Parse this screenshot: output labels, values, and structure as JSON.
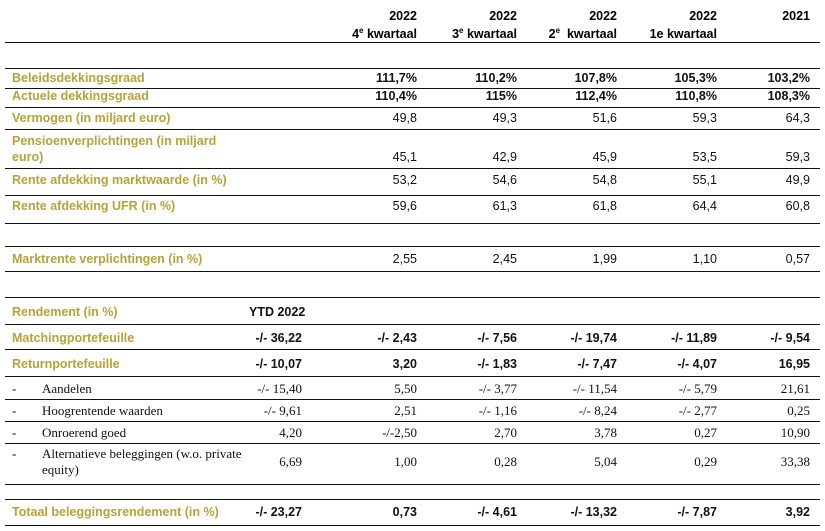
{
  "header": {
    "cols": [
      {
        "year": "2022",
        "q_num": "4",
        "q_sup": "e",
        "q_text": " kwartaal"
      },
      {
        "year": "2022",
        "q_num": "3",
        "q_sup": "e",
        "q_text": " kwartaal"
      },
      {
        "year": "2022",
        "q_num": "2",
        "q_sup": "e",
        "q_text": "  kwartaal"
      },
      {
        "year": "2022",
        "q_num": "1e kwartaal",
        "q_sup": "",
        "q_text": ""
      },
      {
        "year": "2021",
        "q_num": "",
        "q_sup": "",
        "q_text": ""
      }
    ]
  },
  "rows1": [
    {
      "label": "Beleidsdekkingsgraad",
      "values": [
        "111,7%",
        "110,2%",
        "107,8%",
        "105,3%",
        "103,2%"
      ]
    },
    {
      "label": "Actuele dekkingsgraad",
      "values": [
        "110,4%",
        "115%",
        "112,4%",
        "110,8%",
        "108,3%"
      ]
    },
    {
      "label": "Vermogen (in miljard euro)",
      "values": [
        "49,8",
        "49,3",
        "51,6",
        "59,3",
        "64,3"
      ]
    },
    {
      "label": "Pensioenverplichtingen (in miljard euro)",
      "values": [
        "45,1",
        "42,9",
        "45,9",
        "53,5",
        "59,3"
      ]
    },
    {
      "label": "Rente afdekking marktwaarde (in %)",
      "values": [
        "53,2",
        "54,6",
        "54,8",
        "55,1",
        "49,9"
      ]
    },
    {
      "label": "Rente afdekking UFR (in %)",
      "values": [
        "59,6",
        "61,3",
        "61,8",
        "64,4",
        "60,8"
      ]
    }
  ],
  "marktrente": {
    "label": "Marktrente verplichtingen (in %)",
    "values": [
      "2,55",
      "2,45",
      "1,99",
      "1,10",
      "0,57"
    ]
  },
  "rendement": {
    "label": "Rendement (in %)",
    "ytd": "YTD 2022"
  },
  "matching": {
    "label": "Matchingportefeuille",
    "values": [
      "-/- 36,22",
      "-/- 2,43",
      "-/- 7,56",
      "-/- 19,74",
      "-/- 11,89",
      "-/- 9,54"
    ]
  },
  "return": {
    "label": "Returnportefeuille",
    "values": [
      "-/- 10,07",
      "3,20",
      "-/- 1,83",
      "-/- 7,47",
      "-/- 4,07",
      "16,95"
    ]
  },
  "sub": [
    {
      "dash": "-",
      "label": "Aandelen",
      "values": [
        "-/- 15,40",
        "5,50",
        "-/- 3,77",
        "-/- 11,54",
        "-/- 5,79",
        "21,61"
      ]
    },
    {
      "dash": "-",
      "label": "Hoogrentende waarden",
      "values": [
        "-/- 9,61",
        "2,51",
        "-/- 1,16",
        "-/- 8,24",
        "-/- 2,77",
        "0,25"
      ]
    },
    {
      "dash": "-",
      "label": "Onroerend goed",
      "values": [
        "4,20",
        "-/-2,50",
        "2,70",
        "3,78",
        "0,27",
        "10,90"
      ]
    },
    {
      "dash": "-",
      "label": "Alternatieve beleggingen (w.o. private equity)",
      "values": [
        "6,69",
        "1,00",
        "0,28",
        "5,04",
        "0,29",
        "33,38"
      ]
    }
  ],
  "totaal": {
    "label": "Totaal beleggingsrendement (in %)",
    "values": [
      "-/- 23,27",
      "0,73",
      "-/- 4,61",
      "-/- 13,32",
      "-/- 7,87",
      "3,92"
    ]
  }
}
